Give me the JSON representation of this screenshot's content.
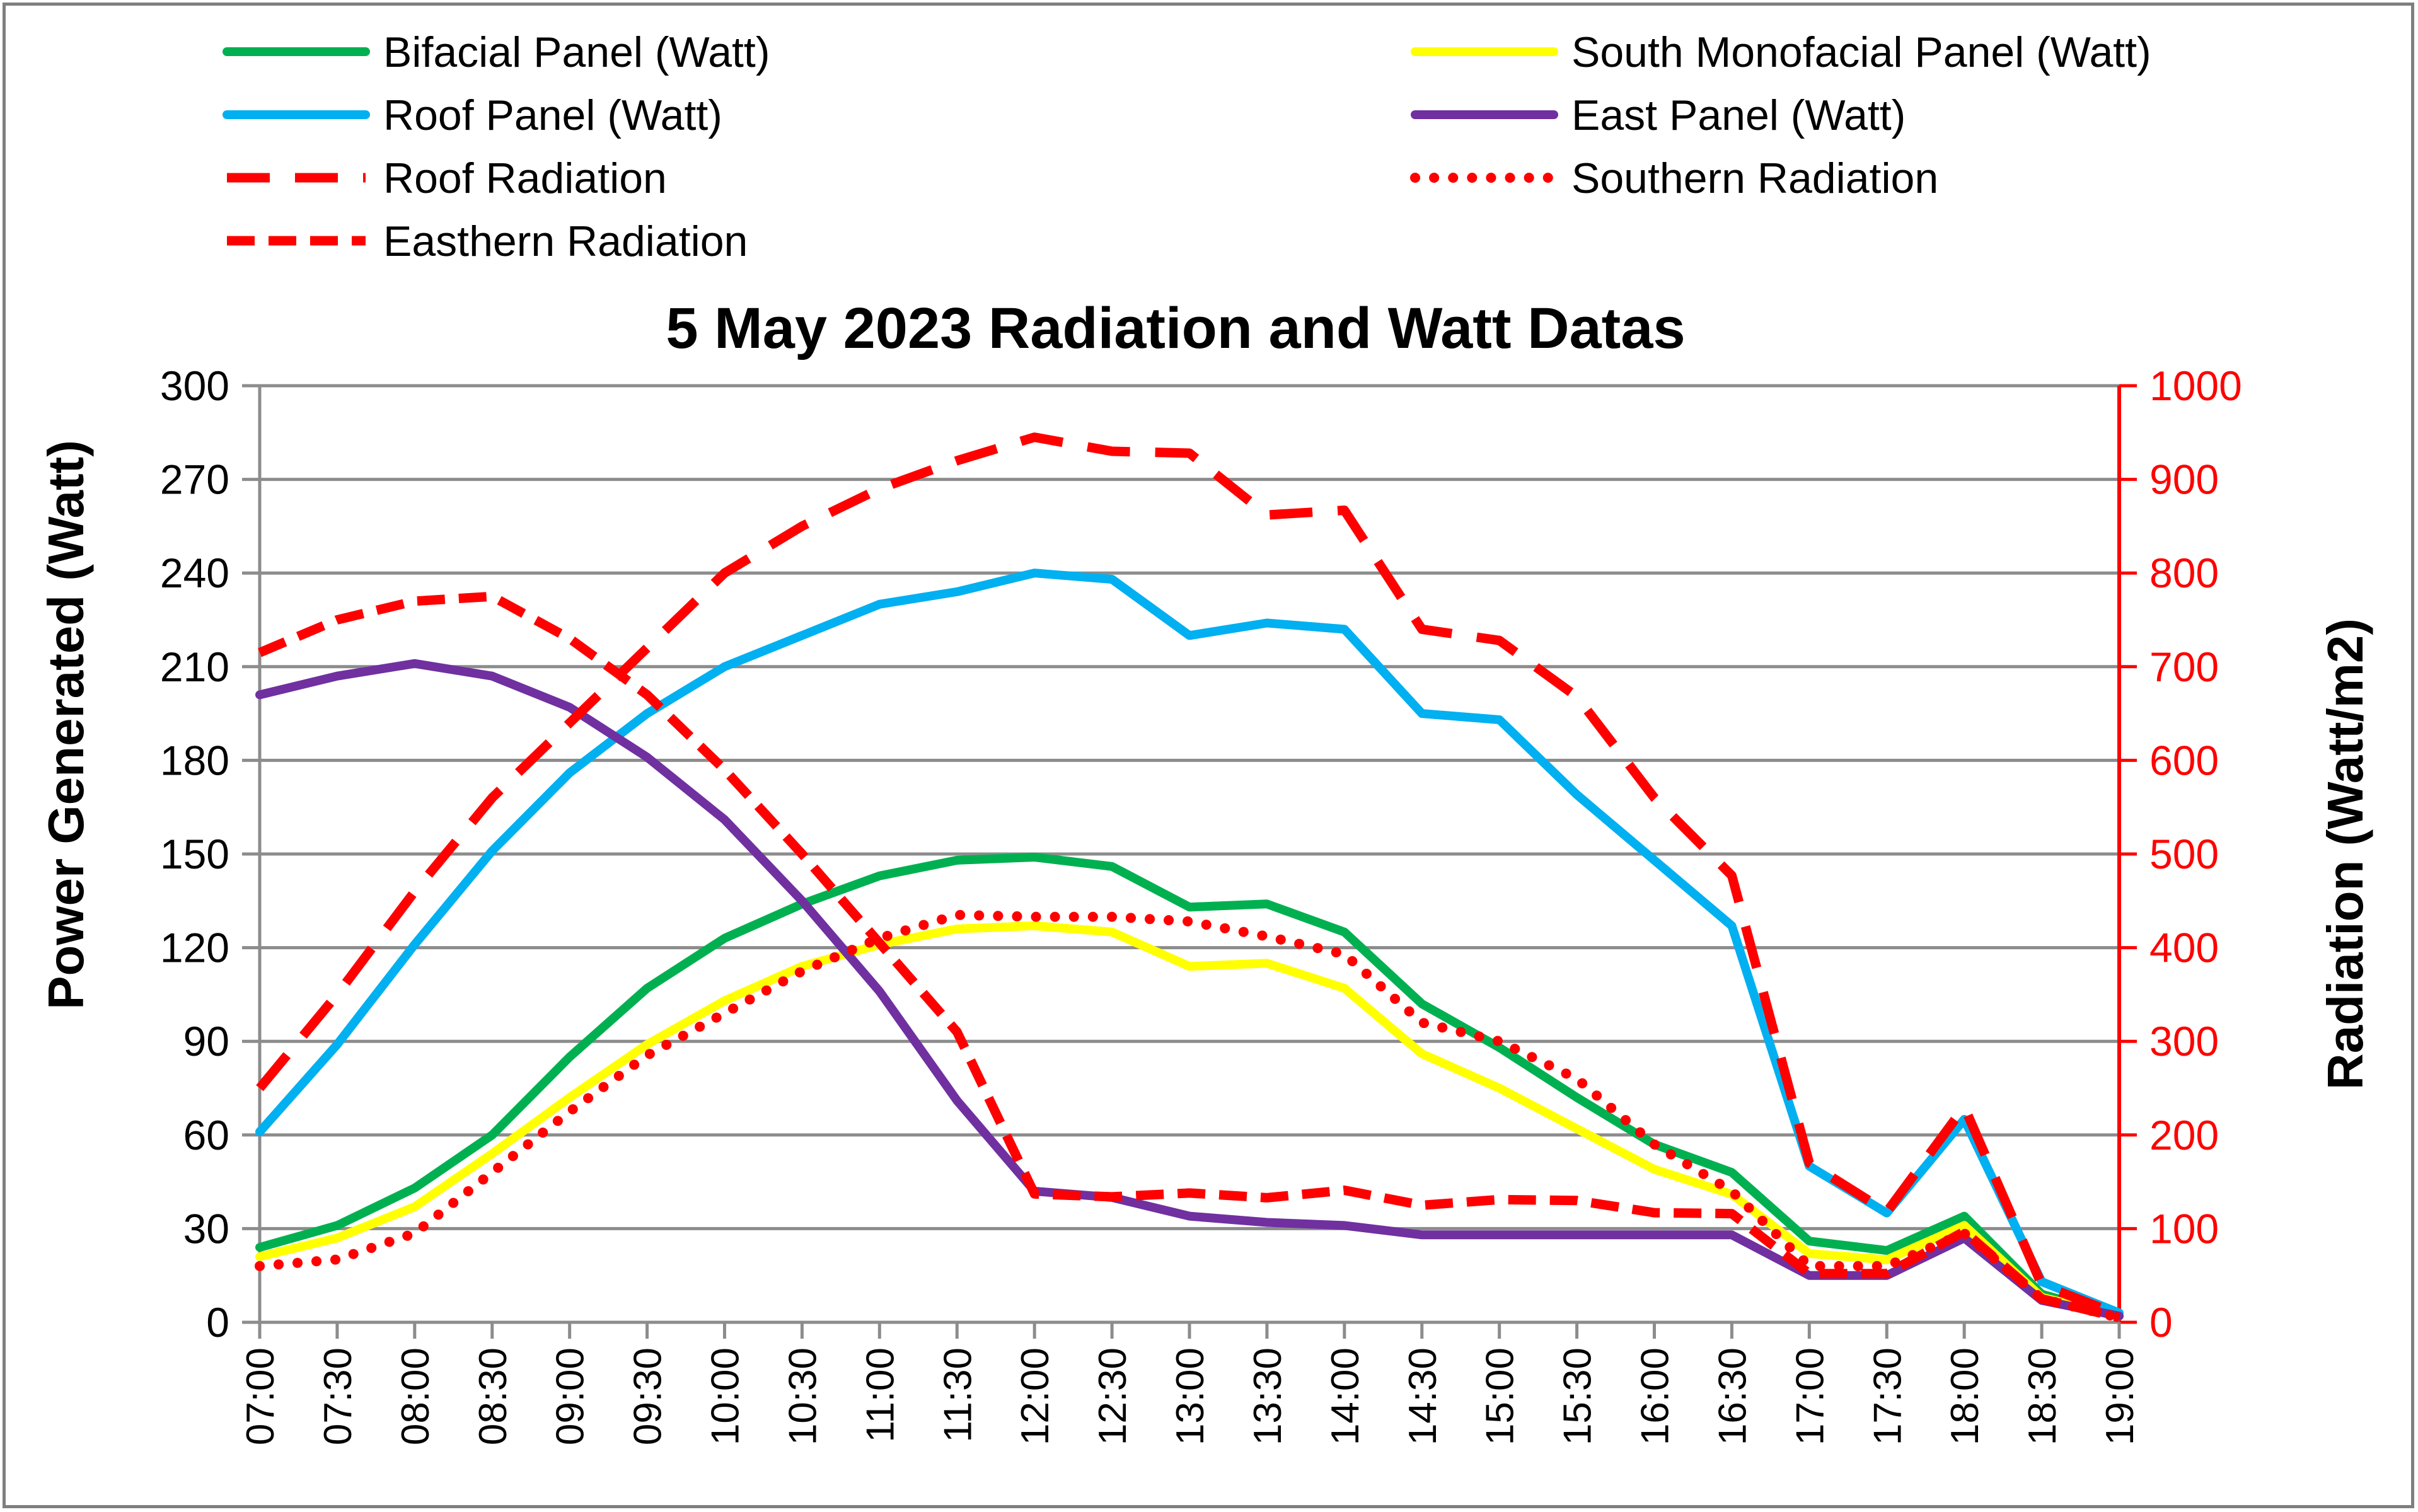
{
  "chart_data": {
    "type": "line",
    "title": "5 May 2023 Radiation and Watt Datas",
    "ylabel": "Power Generated (Watt)",
    "y2label": "Radiation (Watt/m2)",
    "ylim": [
      0,
      300
    ],
    "y2lim": [
      0,
      1000
    ],
    "yticks": [
      "0",
      "30",
      "60",
      "90",
      "120",
      "150",
      "180",
      "210",
      "240",
      "270",
      "300"
    ],
    "y2ticks": [
      "0",
      "100",
      "200",
      "300",
      "400",
      "500",
      "600",
      "700",
      "800",
      "900",
      "1000"
    ],
    "grid": true,
    "legend_position": "top",
    "categories": [
      "07:00",
      "07:30",
      "08:00",
      "08:30",
      "09:00",
      "09:30",
      "10:00",
      "10:30",
      "11:00",
      "11:30",
      "12:00",
      "12:30",
      "13:00",
      "13:30",
      "14:00",
      "14:30",
      "15:00",
      "15:30",
      "16:00",
      "16:30",
      "17:00",
      "17:30",
      "18:00",
      "18:30",
      "19:00"
    ],
    "series": [
      {
        "name": "Bifacial Panel (Watt)",
        "axis": "left",
        "color": "#00b050",
        "style": "solid",
        "values": [
          24,
          31,
          43,
          60,
          85,
          107,
          123,
          134,
          143,
          148,
          149,
          146,
          133,
          134,
          125,
          102,
          88,
          72,
          57,
          48,
          26,
          23,
          34,
          9,
          2
        ]
      },
      {
        "name": "South Monofacial Panel (Watt)",
        "axis": "left",
        "color": "#ffff00",
        "style": "solid",
        "values": [
          21,
          27,
          37,
          54,
          72,
          89,
          103,
          114,
          121,
          126,
          127,
          125,
          114,
          115,
          107,
          86,
          75,
          62,
          49,
          41,
          22,
          20,
          31,
          8,
          2
        ]
      },
      {
        "name": "Roof Panel (Watt)",
        "axis": "left",
        "color": "#00b0f0",
        "style": "solid",
        "values": [
          61,
          89,
          121,
          151,
          176,
          195,
          210,
          220,
          230,
          234,
          240,
          238,
          220,
          224,
          222,
          195,
          193,
          169,
          148,
          127,
          50,
          35,
          65,
          13,
          3
        ]
      },
      {
        "name": "East Panel (Watt)",
        "axis": "left",
        "color": "#7030a0",
        "style": "solid",
        "values": [
          201,
          207,
          211,
          207,
          197,
          181,
          161,
          135,
          106,
          71,
          42,
          40,
          34,
          32,
          31,
          28,
          28,
          28,
          28,
          28,
          15,
          15,
          27,
          7,
          2
        ]
      },
      {
        "name": "Roof Radiation",
        "axis": "right",
        "color": "#ff0000",
        "style": "longdash",
        "values": [
          250,
          350,
          460,
          560,
          640,
          720,
          800,
          850,
          890,
          920,
          945,
          930,
          928,
          862,
          867,
          740,
          728,
          668,
          560,
          477,
          170,
          118,
          230,
          40,
          8
        ]
      },
      {
        "name": "Southern Radiation",
        "axis": "right",
        "color": "#ff0000",
        "style": "dotted",
        "values": [
          60,
          67,
          95,
          160,
          225,
          285,
          330,
          375,
          410,
          435,
          433,
          433,
          428,
          412,
          393,
          320,
          300,
          260,
          190,
          140,
          60,
          60,
          95,
          25,
          5
        ]
      },
      {
        "name": "Easthern Radiation",
        "axis": "right",
        "color": "#ff0000",
        "style": "dash",
        "values": [
          715,
          750,
          770,
          775,
          730,
          670,
          590,
          500,
          405,
          310,
          137,
          134,
          138,
          133,
          141,
          125,
          131,
          130,
          117,
          116,
          52,
          52,
          97,
          25,
          5
        ]
      }
    ]
  }
}
